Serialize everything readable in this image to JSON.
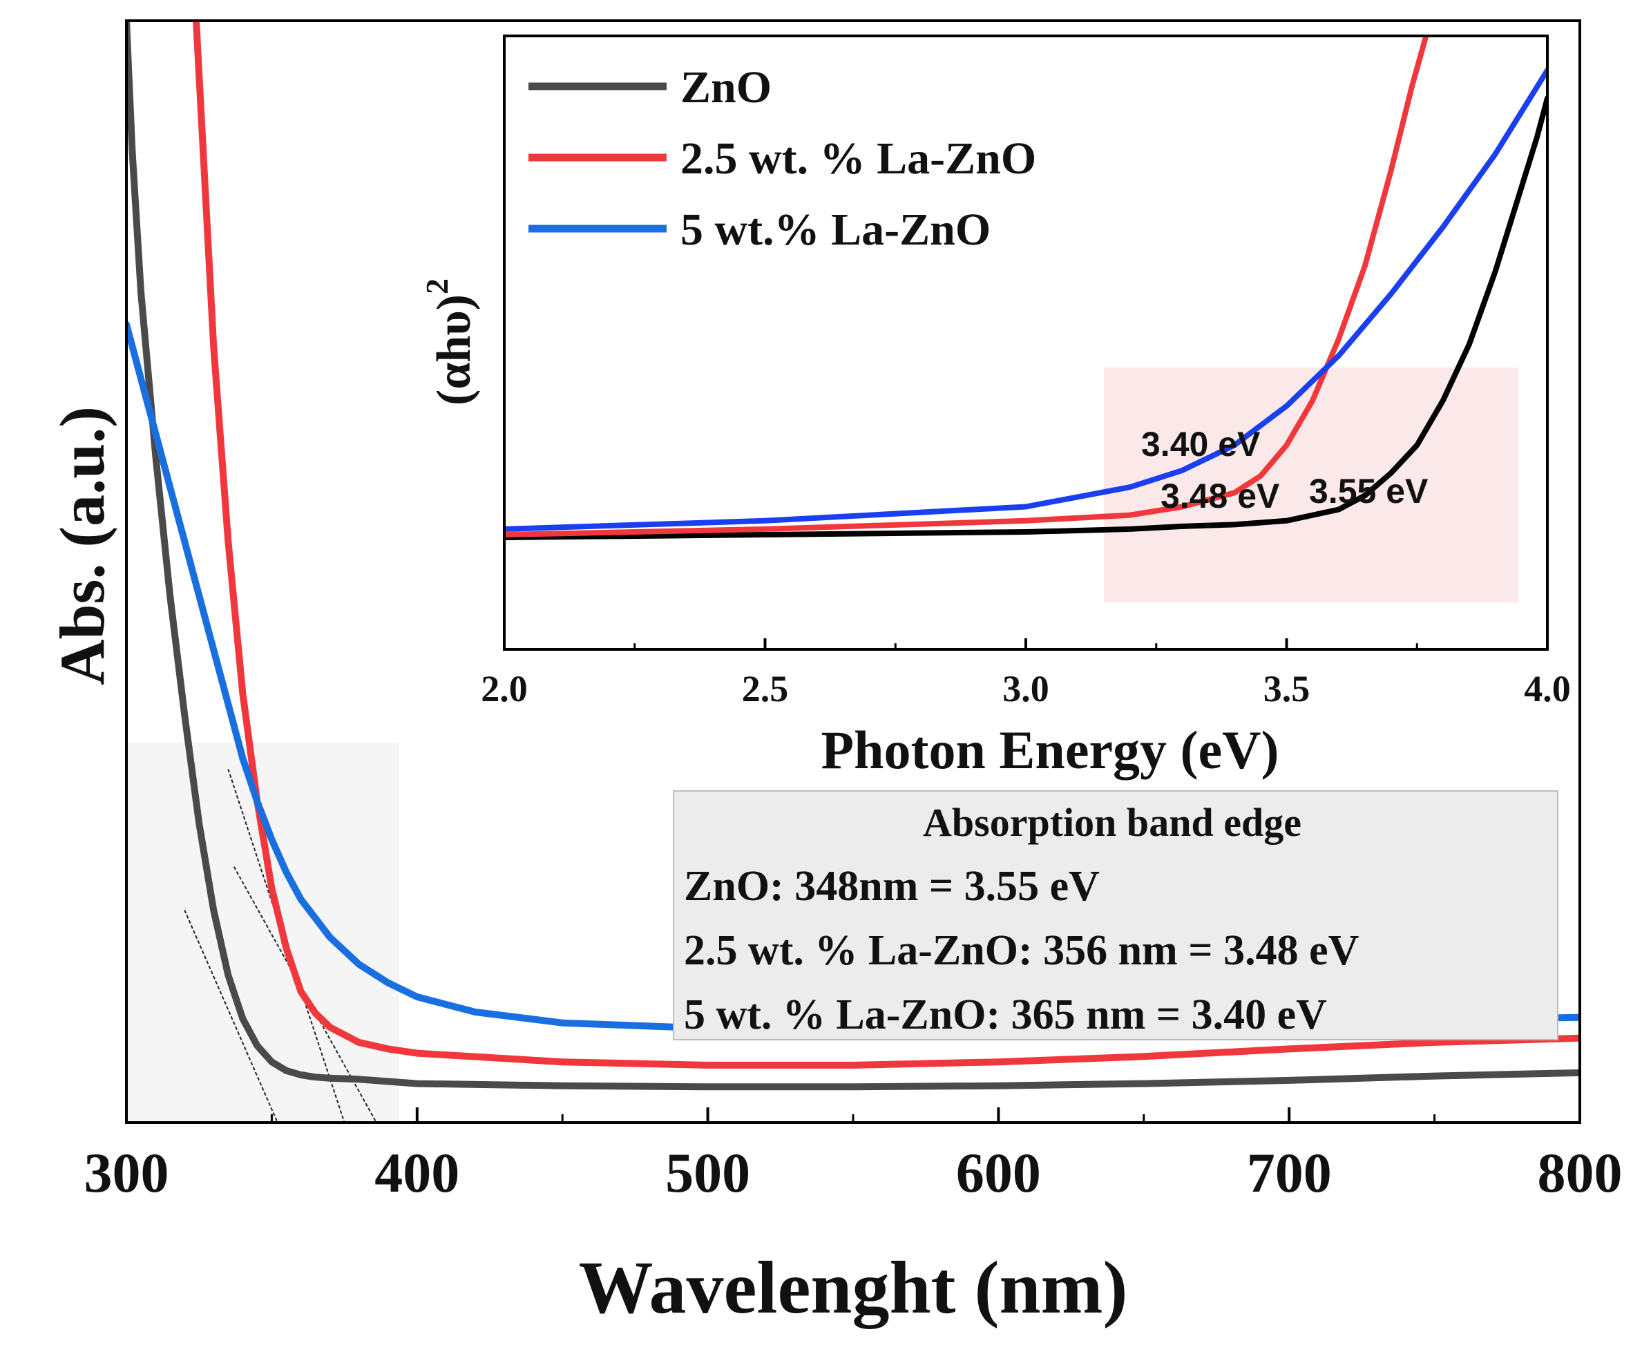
{
  "chart_data": [
    {
      "type": "line",
      "id": "main",
      "xlabel": "Wavelenght (nm)",
      "ylabel": "Abs. (a.u.)",
      "xlim": [
        300,
        800
      ],
      "ylim": [
        0,
        100
      ],
      "xticks": [
        300,
        400,
        500,
        600,
        700,
        800
      ],
      "xtick_labels": [
        "300",
        "400",
        "500",
        "600",
        "700",
        "800"
      ],
      "series": [
        {
          "name": "ZnO",
          "color": "#4a4a4a",
          "x": [
            300,
            302,
            305,
            310,
            315,
            320,
            325,
            330,
            335,
            340,
            345,
            350,
            355,
            360,
            365,
            370,
            380,
            400,
            450,
            500,
            550,
            600,
            650,
            700,
            750,
            800
          ],
          "y": [
            100,
            88,
            75,
            60,
            47,
            36,
            26,
            18,
            12,
            8,
            5.5,
            4,
            3.2,
            2.8,
            2.6,
            2.5,
            2.4,
            2.0,
            1.8,
            1.7,
            1.7,
            1.8,
            2.0,
            2.3,
            2.7,
            3.0
          ]
        },
        {
          "name": "2.5 wt. % La-ZnO",
          "color": "#f0373c",
          "x": [
            324,
            326,
            330,
            335,
            340,
            345,
            350,
            355,
            360,
            365,
            370,
            380,
            390,
            400,
            450,
            500,
            550,
            600,
            650,
            700,
            750,
            800
          ],
          "y": [
            100,
            90,
            70,
            52,
            38,
            28,
            20,
            14.5,
            10.5,
            8.5,
            7.2,
            5.8,
            5.2,
            4.8,
            4.0,
            3.7,
            3.7,
            4.0,
            4.5,
            5.2,
            5.8,
            6.2
          ]
        },
        {
          "name": "5 wt.% La-ZnO",
          "color": "#1a6fe0",
          "x": [
            300,
            305,
            310,
            315,
            320,
            325,
            330,
            335,
            340,
            345,
            350,
            355,
            360,
            370,
            380,
            390,
            400,
            420,
            450,
            500,
            550,
            600,
            650,
            700,
            750,
            800
          ],
          "y": [
            72,
            67,
            62,
            57,
            52,
            47,
            42,
            37,
            32,
            28,
            24.5,
            21.5,
            19,
            15.5,
            13,
            11.3,
            10,
            8.6,
            7.6,
            7.1,
            7.0,
            7.1,
            7.3,
            7.6,
            7.9,
            8.1
          ]
        }
      ],
      "tangent_lines": [
        {
          "x": [
            320,
            352
          ],
          "y": [
            18,
            0
          ]
        },
        {
          "x": [
            335,
            375
          ],
          "y": [
            31,
            0
          ]
        },
        {
          "x": [
            337,
            386
          ],
          "y": [
            22,
            0
          ]
        }
      ],
      "annotation_box": {
        "title": "Absorption band edge",
        "lines": [
          "ZnO: 348nm = 3.55 eV",
          "2.5 wt. % La-ZnO: 356 nm = 3.48 eV",
          "5 wt. % La-ZnO: 365 nm = 3.40 eV"
        ]
      }
    },
    {
      "type": "line",
      "id": "inset",
      "xlabel": "Photon Energy (eV)",
      "ylabel": "(αhυ)",
      "ylabel_sup": "2",
      "xlim": [
        2.0,
        4.0
      ],
      "ylim": [
        0,
        100
      ],
      "xticks": [
        2.0,
        2.5,
        3.0,
        3.5,
        4.0
      ],
      "xtick_labels": [
        "2.0",
        "2.5",
        "3.0",
        "3.5",
        "4.0"
      ],
      "legend": {
        "position": "top-left",
        "entries": [
          "ZnO",
          "2.5 wt. % La-ZnO",
          "5 wt.% La-ZnO"
        ]
      },
      "series": [
        {
          "name": "ZnO",
          "color": "#000000",
          "x": [
            2.0,
            2.5,
            3.0,
            3.2,
            3.3,
            3.4,
            3.5,
            3.6,
            3.65,
            3.7,
            3.75,
            3.8,
            3.85,
            3.9,
            3.95,
            3.98,
            4.0
          ],
          "y": [
            9.5,
            10,
            10.5,
            11,
            11.5,
            11.8,
            12.5,
            14.5,
            17,
            21,
            26,
            34,
            44,
            57,
            72,
            81,
            88
          ]
        },
        {
          "name": "2.5 wt. % La-ZnO",
          "color": "#f0373c",
          "x": [
            2.0,
            2.5,
            3.0,
            3.2,
            3.3,
            3.4,
            3.45,
            3.5,
            3.55,
            3.6,
            3.65,
            3.7,
            3.74,
            3.77
          ],
          "y": [
            10,
            11,
            12.5,
            13.5,
            15,
            17.5,
            20.5,
            26,
            34,
            45,
            58,
            75,
            90,
            100
          ]
        },
        {
          "name": "5 wt.% La-ZnO",
          "color": "#1a3ff0",
          "x": [
            2.0,
            2.5,
            3.0,
            3.2,
            3.3,
            3.4,
            3.5,
            3.6,
            3.7,
            3.8,
            3.9,
            4.0
          ],
          "y": [
            11,
            12.5,
            15,
            18.5,
            21.5,
            26,
            33,
            42,
            53,
            65,
            78,
            93
          ]
        }
      ],
      "annotations": [
        "3.40 eV",
        "3.48 eV",
        "3.55 eV"
      ]
    }
  ]
}
